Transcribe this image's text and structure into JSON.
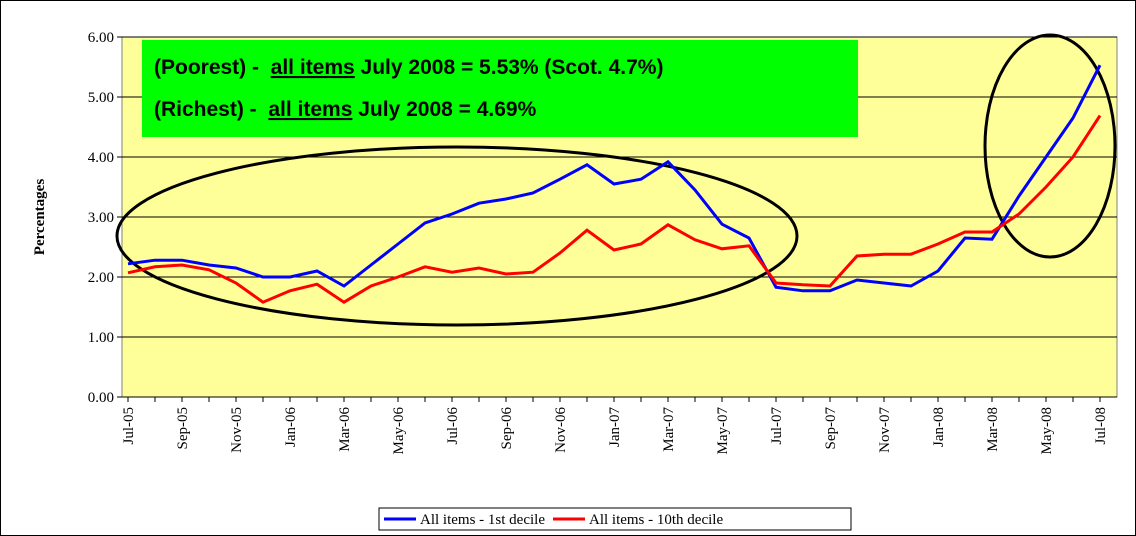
{
  "chart_data": {
    "type": "line",
    "y_label": "Percentages",
    "categories": [
      "Jul-05",
      null,
      "Sep-05",
      null,
      "Nov-05",
      null,
      "Jan-06",
      null,
      "Mar-06",
      null,
      "May-06",
      null,
      "Jul-06",
      null,
      "Sep-06",
      null,
      "Nov-06",
      null,
      "Jan-07",
      null,
      "Mar-07",
      null,
      "May-07",
      null,
      "Jul-07",
      null,
      "Sep-07",
      null,
      "Nov-07",
      null,
      "Jan-08",
      null,
      "Mar-08",
      null,
      "May-08",
      null,
      "Jul-08"
    ],
    "series": [
      {
        "name": "All items - 1st decile",
        "color": "#0000ff",
        "values": [
          2.22,
          2.28,
          2.28,
          2.2,
          2.15,
          2.0,
          2.0,
          2.1,
          1.85,
          2.2,
          2.55,
          2.9,
          3.05,
          3.23,
          3.3,
          3.4,
          3.63,
          3.87,
          3.55,
          3.63,
          3.92,
          3.45,
          2.88,
          2.65,
          1.83,
          1.77,
          1.77,
          1.95,
          1.9,
          1.85,
          2.1,
          2.65,
          2.63,
          3.35,
          4.0,
          4.65,
          5.53
        ]
      },
      {
        "name": "All items - 10th decile",
        "color": "#ff0000",
        "values": [
          2.07,
          2.17,
          2.2,
          2.12,
          1.9,
          1.58,
          1.77,
          1.88,
          1.58,
          1.85,
          2.0,
          2.17,
          2.08,
          2.15,
          2.05,
          2.08,
          2.4,
          2.78,
          2.45,
          2.55,
          2.87,
          2.62,
          2.47,
          2.52,
          1.9,
          1.87,
          1.85,
          2.35,
          2.38,
          2.38,
          2.55,
          2.75,
          2.75,
          3.05,
          3.5,
          4.0,
          4.69
        ]
      }
    ],
    "ylim": [
      0,
      6
    ],
    "yticks": [
      {
        "value": 0,
        "label": "0.00"
      },
      {
        "value": 1,
        "label": "1.00"
      },
      {
        "value": 2,
        "label": "2.00"
      },
      {
        "value": 3,
        "label": "3.00"
      },
      {
        "value": 4,
        "label": "4.00"
      },
      {
        "value": 5,
        "label": "5.00"
      },
      {
        "value": 6,
        "label": "6.00"
      }
    ],
    "grid": true,
    "plot_background": "#ffff99",
    "annotations": [
      {
        "before": "(Poorest) -  ",
        "underlined": "all items",
        "after": " July 2008 = 5.53% (Scot. 4.7%)"
      },
      {
        "before": "(Richest) -  ",
        "underlined": "all items",
        "after": " July 2008 = 4.69%"
      }
    ],
    "annotation_background": "#00ff00"
  }
}
